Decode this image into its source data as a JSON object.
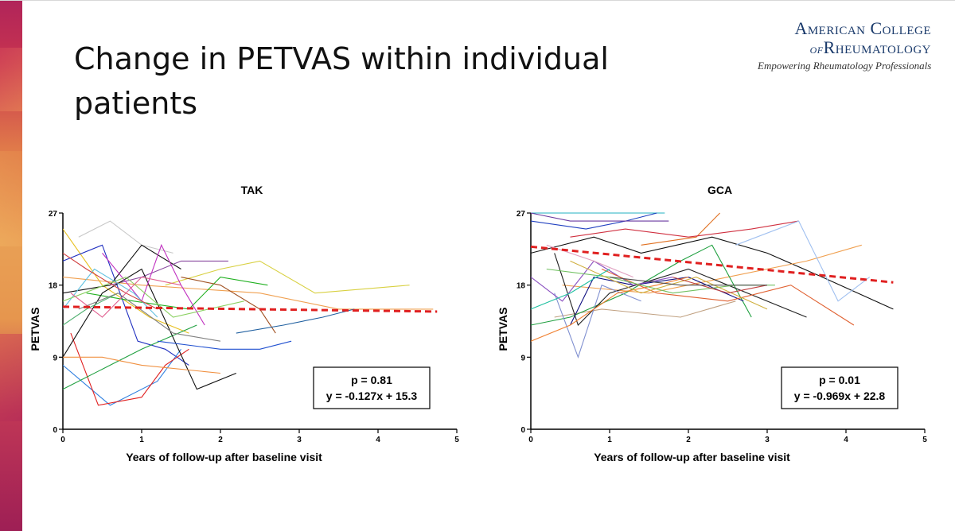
{
  "slide": {
    "title": "Change in PETVAS within individual patients"
  },
  "logo": {
    "line1": "American College",
    "line2_prefix": "of",
    "line2": "Rheumatology",
    "tagline": "Empowering Rheumatology Professionals"
  },
  "chart_data": [
    {
      "type": "line",
      "title": "TAK",
      "xlabel": "Years of follow-up after baseline visit",
      "ylabel": "PETVAS",
      "xlim": [
        0,
        5
      ],
      "ylim": [
        0,
        27
      ],
      "xticks": [
        0,
        1,
        2,
        3,
        4,
        5
      ],
      "yticks": [
        0,
        9,
        18,
        27
      ],
      "annotation": {
        "p": "p = 0.81",
        "equation": "y = -0.127x + 15.3"
      },
      "regression": {
        "slope": -0.127,
        "intercept": 15.3,
        "x_range": [
          0,
          4.75
        ],
        "color": "#e02020"
      },
      "series": [
        {
          "color": "#e8c020",
          "x": [
            0,
            0.5,
            1.1,
            1.6
          ],
          "y": [
            25,
            18,
            14,
            12
          ]
        },
        {
          "color": "#c8c8c8",
          "x": [
            0.2,
            0.6,
            1.0,
            1.4
          ],
          "y": [
            24,
            26,
            23,
            22
          ]
        },
        {
          "color": "#2030c0",
          "x": [
            0,
            0.5,
            0.95,
            1.3,
            1.6
          ],
          "y": [
            21,
            23,
            11,
            10,
            8
          ]
        },
        {
          "color": "#101010",
          "x": [
            0,
            0.6,
            1.0,
            1.5
          ],
          "y": [
            17,
            18,
            23,
            20
          ]
        },
        {
          "color": "#8a4aa0",
          "x": [
            0.6,
            1.0,
            1.5,
            2.1
          ],
          "y": [
            18,
            19,
            21,
            21
          ]
        },
        {
          "color": "#f0a050",
          "x": [
            0,
            1.0,
            2.5,
            3.5,
            4.7
          ],
          "y": [
            19,
            18,
            17,
            15,
            15
          ]
        },
        {
          "color": "#d8d040",
          "x": [
            1.3,
            2.0,
            2.5,
            3.2,
            4.4
          ],
          "y": [
            18,
            20,
            21,
            17,
            18
          ]
        },
        {
          "color": "#20b020",
          "x": [
            0.3,
            0.9,
            1.6,
            2.0,
            2.6
          ],
          "y": [
            17,
            16,
            15,
            19,
            18
          ]
        },
        {
          "color": "#3080e0",
          "x": [
            0,
            0.6,
            1.2,
            1.5
          ],
          "y": [
            8,
            3,
            6,
            10
          ]
        },
        {
          "color": "#e02020",
          "x": [
            0.1,
            0.45,
            1.0,
            1.3,
            1.6
          ],
          "y": [
            12,
            3,
            4,
            8,
            10
          ]
        },
        {
          "color": "#20a040",
          "x": [
            0,
            0.6,
            1.0,
            1.7
          ],
          "y": [
            5,
            8,
            10,
            13
          ]
        },
        {
          "color": "#101010",
          "x": [
            0,
            0.5,
            1.0,
            1.7,
            2.2
          ],
          "y": [
            9,
            17,
            20,
            5,
            7
          ]
        },
        {
          "color": "#2050d0",
          "x": [
            1.2,
            2.0,
            2.5,
            2.9
          ],
          "y": [
            11,
            10,
            10,
            11
          ]
        },
        {
          "color": "#a05020",
          "x": [
            1.5,
            2.0,
            2.5,
            2.7
          ],
          "y": [
            19,
            18,
            15,
            12
          ]
        },
        {
          "color": "#c030c0",
          "x": [
            0.5,
            1.0,
            1.25,
            1.5,
            1.8
          ],
          "y": [
            22,
            16,
            23,
            18,
            13
          ]
        },
        {
          "color": "#60c0e0",
          "x": [
            0,
            0.4,
            0.9,
            1.2
          ],
          "y": [
            15,
            20,
            17,
            14
          ]
        },
        {
          "color": "#f09040",
          "x": [
            0,
            0.5,
            1.0,
            2.0
          ],
          "y": [
            9,
            9,
            8,
            7
          ]
        },
        {
          "color": "#8ad060",
          "x": [
            0,
            0.8,
            1.4,
            2.3
          ],
          "y": [
            16,
            19,
            14,
            16
          ]
        },
        {
          "color": "#d04040",
          "x": [
            0,
            0.3,
            0.8,
            1.2
          ],
          "y": [
            22,
            20,
            17,
            15
          ]
        },
        {
          "color": "#2060a0",
          "x": [
            2.2,
            2.8,
            3.3,
            3.7
          ],
          "y": [
            12,
            13,
            14,
            15
          ]
        },
        {
          "color": "#50b070",
          "x": [
            0,
            0.3,
            0.7
          ],
          "y": [
            13,
            15,
            17
          ]
        },
        {
          "color": "#e06090",
          "x": [
            0.1,
            0.5,
            1.0,
            1.5
          ],
          "y": [
            17,
            14,
            19,
            18
          ]
        },
        {
          "color": "#808080",
          "x": [
            0.2,
            0.7,
            1.4,
            2.0
          ],
          "y": [
            15,
            17,
            12,
            11
          ]
        }
      ]
    },
    {
      "type": "line",
      "title": "GCA",
      "xlabel": "Years of follow-up after baseline visit",
      "ylabel": "PETVAS",
      "xlim": [
        0,
        5
      ],
      "ylim": [
        0,
        27
      ],
      "xticks": [
        0,
        1,
        2,
        3,
        4,
        5
      ],
      "yticks": [
        0,
        9,
        18,
        27
      ],
      "annotation": {
        "p": "p = 0.01",
        "equation": "y = -0.969x + 22.8"
      },
      "regression": {
        "slope": -0.969,
        "intercept": 22.8,
        "x_range": [
          0,
          4.6
        ],
        "color": "#e02020"
      },
      "series": [
        {
          "color": "#20b0c0",
          "x": [
            0,
            0.6,
            1.0,
            1.7
          ],
          "y": [
            27,
            27,
            27,
            27
          ]
        },
        {
          "color": "#2040c0",
          "x": [
            0,
            0.7,
            1.2,
            1.6
          ],
          "y": [
            26,
            25,
            26,
            27
          ]
        },
        {
          "color": "#6a3aa0",
          "x": [
            0,
            0.5,
            1.0,
            1.5,
            1.75
          ],
          "y": [
            27,
            26,
            26,
            26,
            26
          ]
        },
        {
          "color": "#e07020",
          "x": [
            1.4,
            2.1,
            2.4
          ],
          "y": [
            23,
            24,
            27
          ]
        },
        {
          "color": "#d03040",
          "x": [
            0.5,
            1.2,
            2.0,
            2.8,
            3.4
          ],
          "y": [
            24,
            25,
            24,
            25,
            26
          ]
        },
        {
          "color": "#101010",
          "x": [
            0,
            0.8,
            1.4,
            2.3,
            3.0,
            3.7,
            4.6
          ],
          "y": [
            22,
            24,
            22,
            24,
            22,
            19,
            15
          ]
        },
        {
          "color": "#f0a050",
          "x": [
            0.4,
            1.5,
            2.5,
            3.5,
            4.2
          ],
          "y": [
            18,
            17,
            19,
            21,
            23
          ]
        },
        {
          "color": "#a0c0f0",
          "x": [
            2.6,
            3.4,
            3.9,
            4.3
          ],
          "y": [
            23,
            26,
            16,
            19
          ]
        },
        {
          "color": "#c0a080",
          "x": [
            0.3,
            0.9,
            1.9,
            2.6
          ],
          "y": [
            14,
            15,
            14,
            16
          ]
        },
        {
          "color": "#20a040",
          "x": [
            0,
            0.5,
            1.2,
            1.9,
            2.3,
            2.8
          ],
          "y": [
            13,
            14,
            17,
            21,
            23,
            14
          ]
        },
        {
          "color": "#101080",
          "x": [
            0.5,
            0.8,
            1.3,
            2.0,
            2.7
          ],
          "y": [
            13,
            19,
            18,
            19,
            16
          ]
        },
        {
          "color": "#202020",
          "x": [
            0.3,
            0.6,
            1.0,
            2.0,
            3.5
          ],
          "y": [
            22,
            13,
            17,
            20,
            14
          ]
        },
        {
          "color": "#8090d0",
          "x": [
            0.3,
            0.6,
            0.9,
            1.4
          ],
          "y": [
            17,
            9,
            18,
            16
          ]
        },
        {
          "color": "#f08030",
          "x": [
            0,
            0.5,
            1.1,
            1.6,
            2.0
          ],
          "y": [
            11,
            13,
            17,
            18,
            19
          ]
        },
        {
          "color": "#8a50c0",
          "x": [
            0,
            0.4,
            0.8,
            1.3,
            1.8
          ],
          "y": [
            19,
            16,
            21,
            18,
            19
          ]
        },
        {
          "color": "#e06030",
          "x": [
            0.9,
            1.6,
            2.5,
            3.3,
            4.1
          ],
          "y": [
            20,
            17,
            16,
            18,
            13
          ]
        },
        {
          "color": "#70c060",
          "x": [
            0.2,
            1.0,
            1.8,
            2.6,
            3.1
          ],
          "y": [
            20,
            19,
            17,
            18,
            18
          ]
        },
        {
          "color": "#d0b040",
          "x": [
            0.5,
            1.4,
            2.1,
            3.0
          ],
          "y": [
            21,
            17,
            19,
            15
          ]
        },
        {
          "color": "#c04040",
          "x": [
            1.8,
            2.5,
            3.0
          ],
          "y": [
            19,
            17,
            18
          ]
        },
        {
          "color": "#505050",
          "x": [
            1.0,
            1.9,
            3.0
          ],
          "y": [
            19,
            18,
            18
          ]
        },
        {
          "color": "#20c0a0",
          "x": [
            0,
            0.5,
            1.0
          ],
          "y": [
            15,
            17,
            20
          ]
        },
        {
          "color": "#e0a0c0",
          "x": [
            0.2,
            0.8,
            1.3
          ],
          "y": [
            23,
            21,
            19
          ]
        }
      ]
    }
  ]
}
